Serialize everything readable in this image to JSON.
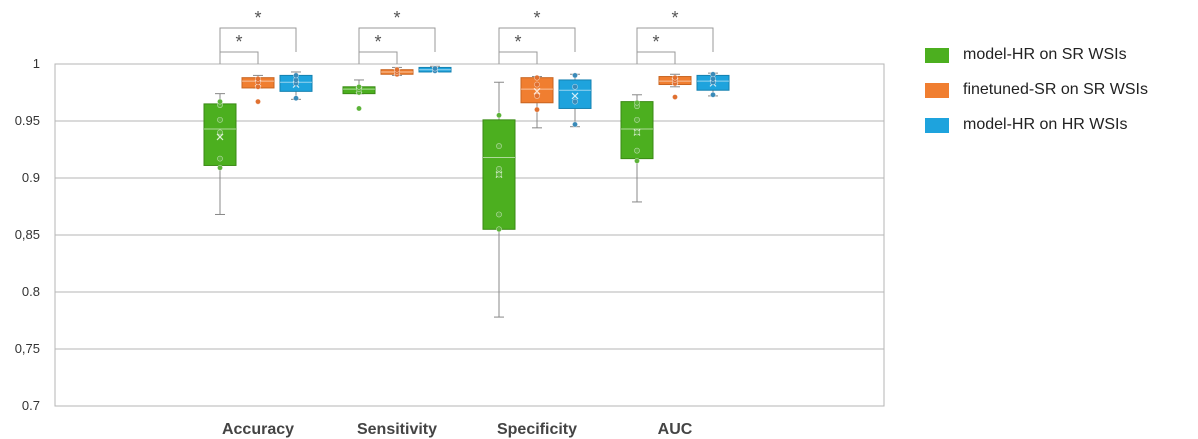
{
  "chart_data": {
    "type": "box",
    "categories": [
      "Accuracy",
      "Sensitivity",
      "Specificity",
      "AUC"
    ],
    "ylim": [
      0.7,
      1.0
    ],
    "yticks": [
      0.7,
      0.75,
      0.8,
      0.85,
      0.9,
      0.95,
      1.0
    ],
    "ytick_labels": [
      "0.7",
      "0,75",
      "0.8",
      "0,85",
      "0.9",
      "0.95",
      "1"
    ],
    "grid": true,
    "legend_position": "right",
    "significance_marker": "*",
    "series": [
      {
        "name": "model-HR on SR WSIs",
        "color": "#4caf1f",
        "stroke": "#3a8a14",
        "dot_color": "#5cb338",
        "boxes": [
          {
            "min": 0.868,
            "q1": 0.911,
            "median": 0.943,
            "q3": 0.965,
            "max": 0.974,
            "mean": 0.936,
            "points": [
              0.909,
              0.917,
              0.94,
              0.951,
              0.964,
              0.967
            ]
          },
          {
            "min": 0.974,
            "q1": 0.974,
            "median": 0.978,
            "q3": 0.98,
            "max": 0.986,
            "mean": 0.977,
            "points": [
              0.961,
              0.975,
              0.978,
              0.98
            ]
          },
          {
            "min": 0.778,
            "q1": 0.855,
            "median": 0.918,
            "q3": 0.951,
            "max": 0.984,
            "mean": 0.903,
            "points": [
              0.855,
              0.868,
              0.903,
              0.908,
              0.928,
              0.955
            ]
          },
          {
            "min": 0.879,
            "q1": 0.917,
            "median": 0.943,
            "q3": 0.967,
            "max": 0.973,
            "mean": 0.94,
            "points": [
              0.915,
              0.924,
              0.94,
              0.951,
              0.963,
              0.966
            ]
          }
        ]
      },
      {
        "name": "finetuned-SR on SR WSIs",
        "color": "#f07e30",
        "stroke": "#c86420",
        "dot_color": "#e07030",
        "boxes": [
          {
            "min": 0.979,
            "q1": 0.979,
            "median": 0.985,
            "q3": 0.988,
            "max": 0.99,
            "mean": 0.983,
            "points": [
              0.967,
              0.98,
              0.984,
              0.987
            ]
          },
          {
            "min": 0.99,
            "q1": 0.991,
            "median": 0.993,
            "q3": 0.995,
            "max": 0.997,
            "mean": 0.993,
            "points": [
              0.991,
              0.993,
              0.995
            ]
          },
          {
            "min": 0.944,
            "q1": 0.966,
            "median": 0.978,
            "q3": 0.988,
            "max": 0.989,
            "mean": 0.976,
            "points": [
              0.96,
              0.972,
              0.982,
              0.988
            ]
          },
          {
            "min": 0.98,
            "q1": 0.982,
            "median": 0.985,
            "q3": 0.989,
            "max": 0.991,
            "mean": 0.985,
            "points": [
              0.971,
              0.983,
              0.986,
              0.988
            ]
          }
        ]
      },
      {
        "name": "model-HR on HR WSIs",
        "color": "#1ea3dd",
        "stroke": "#1480b0",
        "dot_color": "#3a8ab8",
        "boxes": [
          {
            "min": 0.969,
            "q1": 0.976,
            "median": 0.984,
            "q3": 0.99,
            "max": 0.993,
            "mean": 0.982,
            "points": [
              0.97,
              0.983,
              0.986,
              0.99
            ]
          },
          {
            "min": 0.993,
            "q1": 0.993,
            "median": 0.995,
            "q3": 0.997,
            "max": 0.998,
            "mean": 0.995,
            "points": [
              0.994,
              0.996
            ]
          },
          {
            "min": 0.945,
            "q1": 0.961,
            "median": 0.977,
            "q3": 0.986,
            "max": 0.991,
            "mean": 0.972,
            "points": [
              0.947,
              0.967,
              0.98,
              0.99
            ]
          },
          {
            "min": 0.972,
            "q1": 0.977,
            "median": 0.985,
            "q3": 0.99,
            "max": 0.992,
            "mean": 0.983,
            "points": [
              0.973,
              0.984,
              0.987,
              0.991
            ]
          }
        ]
      }
    ]
  }
}
